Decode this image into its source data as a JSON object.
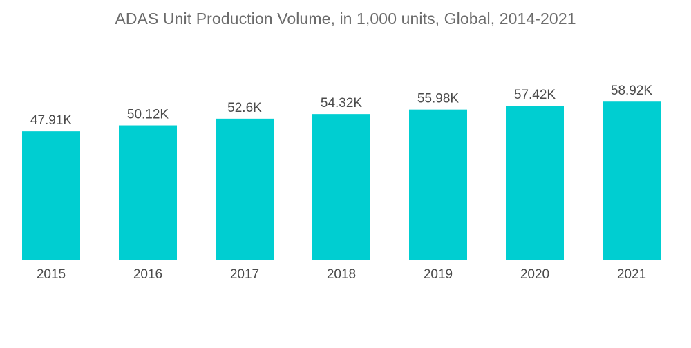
{
  "chart_data": {
    "type": "bar",
    "title": "ADAS Unit Production Volume, in 1,000 units, Global, 2014-2021",
    "categories": [
      "2015",
      "2016",
      "2017",
      "2018",
      "2019",
      "2020",
      "2021"
    ],
    "values": [
      47.91,
      50.12,
      52.6,
      54.32,
      55.98,
      57.42,
      58.92
    ],
    "value_labels": [
      "47.91K",
      "50.12K",
      "52.6K",
      "54.32K",
      "55.98K",
      "57.42K",
      "58.92K"
    ],
    "bar_color": "#00CED1",
    "xlabel": "",
    "ylabel": "",
    "grid": false,
    "legend": "none"
  }
}
